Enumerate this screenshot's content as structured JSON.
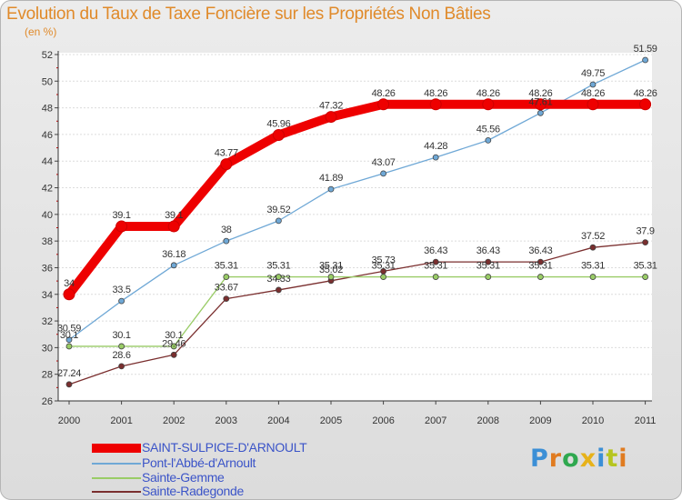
{
  "title": "Evolution du Taux de Taxe Foncière sur les Propriétés Non Bâties",
  "unit_label": "(en %)",
  "logo": "Proxiti",
  "chart_data": {
    "type": "line",
    "title": "Evolution du Taux de Taxe Foncière sur les Propriétés Non Bâties",
    "ylabel": "(en %)",
    "xlabel": "",
    "ylim": [
      26,
      52
    ],
    "yticks": [
      26,
      28,
      30,
      32,
      34,
      36,
      38,
      40,
      42,
      44,
      46,
      48,
      50,
      52
    ],
    "categories": [
      "2000",
      "2001",
      "2002",
      "2003",
      "2004",
      "2005",
      "2006",
      "2007",
      "2008",
      "2009",
      "2010",
      "2011"
    ],
    "grid": "horizontal",
    "series": [
      {
        "name": "SAINT-SULPICE-D'ARNOULT",
        "color": "#ee0000",
        "values": [
          34,
          39.1,
          39.1,
          43.77,
          45.96,
          47.32,
          48.26,
          48.26,
          48.26,
          48.26,
          48.26,
          48.26
        ],
        "labels": [
          "34",
          "39.1",
          "39.1",
          "43.77",
          "45.96",
          "47.32",
          "48.26",
          "48.26",
          "48.26",
          "48.26",
          "48.26",
          "48.26"
        ]
      },
      {
        "name": "Pont-l'Abbé-d'Arnoult",
        "color": "#6fa8d6",
        "values": [
          30.59,
          33.5,
          36.18,
          38,
          39.52,
          41.89,
          43.07,
          44.28,
          45.56,
          47.61,
          49.75,
          51.59
        ],
        "labels": [
          "30.59",
          "33.5",
          "36.18",
          "38",
          "39.52",
          "41.89",
          "43.07",
          "44.28",
          "45.56",
          "47.61",
          "49.75",
          "51.59"
        ]
      },
      {
        "name": "Sainte-Gemme",
        "color": "#99cc66",
        "values": [
          30.1,
          30.1,
          30.1,
          35.31,
          35.31,
          35.31,
          35.31,
          35.31,
          35.31,
          35.31,
          35.31,
          35.31
        ],
        "labels": [
          "30.1",
          "30.1",
          "30.1",
          "35.31",
          "35.31",
          "35.31",
          "35.31",
          "35.31",
          "35.31",
          "35.31",
          "35.31",
          "35.31"
        ]
      },
      {
        "name": "Sainte-Radegonde",
        "color": "#7a2e2e",
        "values": [
          27.24,
          28.6,
          29.46,
          33.67,
          34.33,
          35.02,
          35.73,
          36.43,
          36.43,
          36.43,
          37.52,
          37.9
        ],
        "labels": [
          "27.24",
          "28.6",
          "29.46",
          "33.67",
          "34.33",
          "35.02",
          "35.73",
          "36.43",
          "36.43",
          "36.43",
          "37.52",
          "37.9"
        ]
      }
    ]
  }
}
